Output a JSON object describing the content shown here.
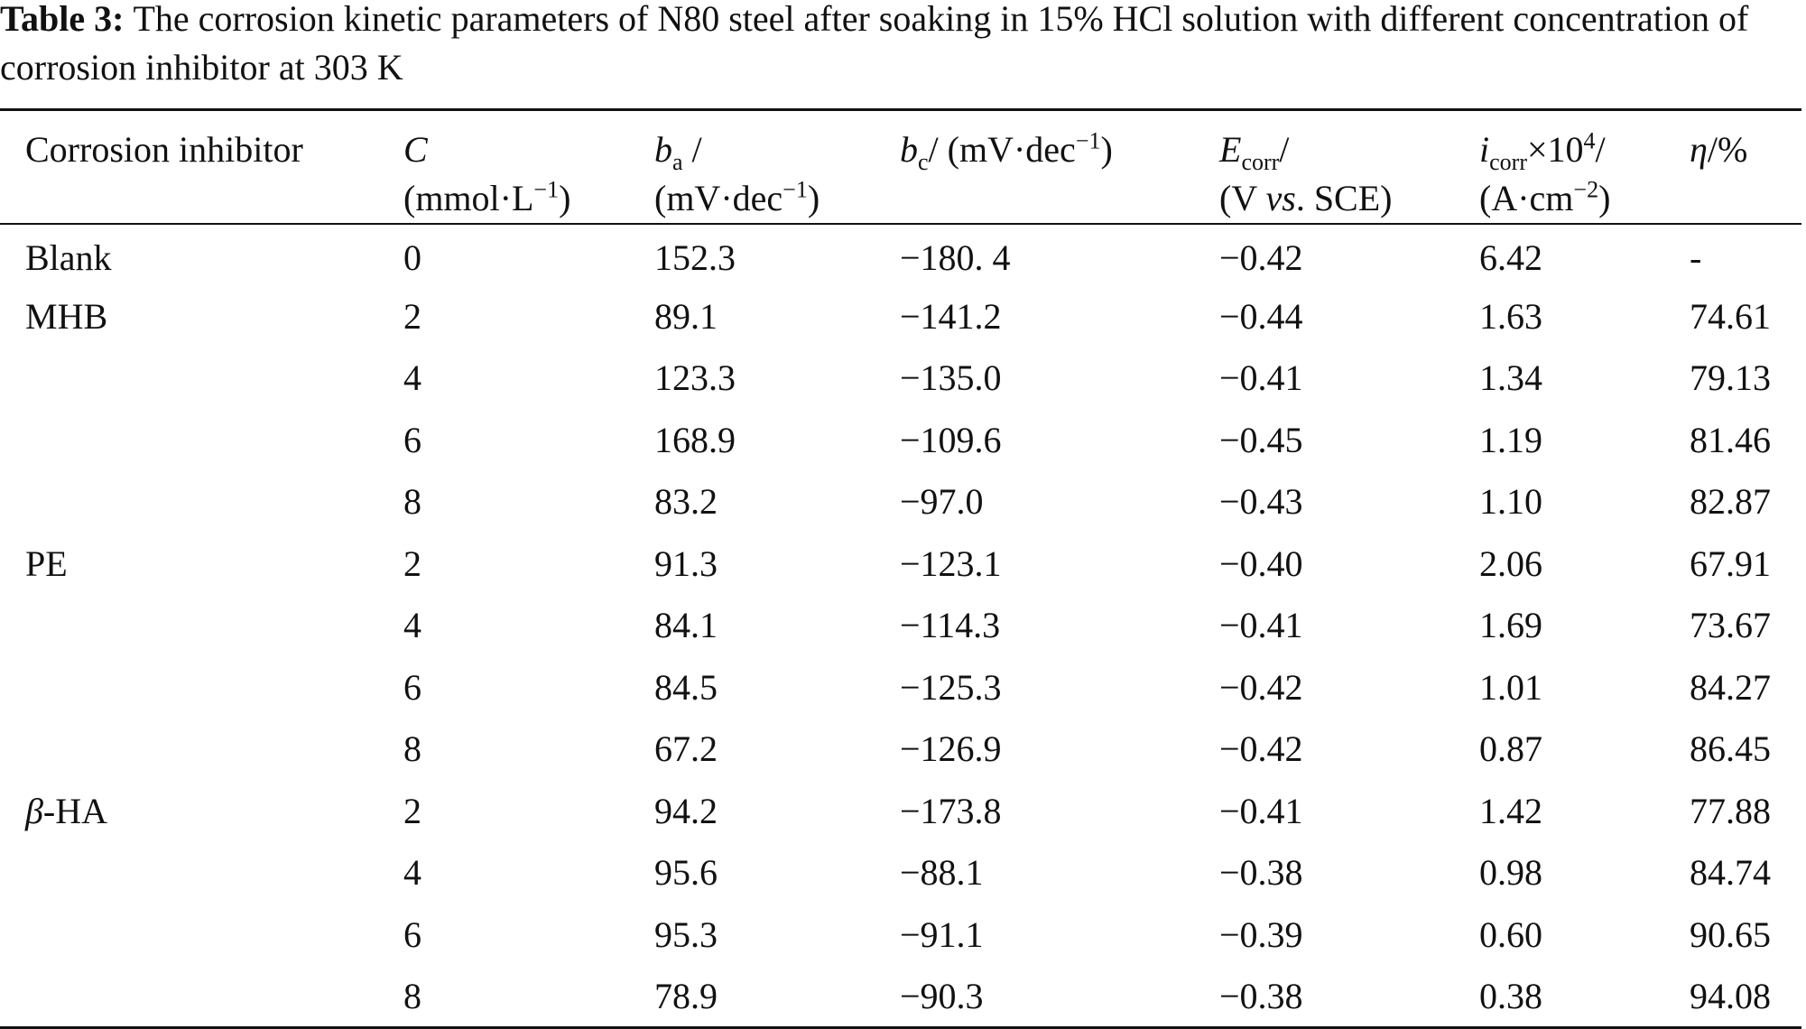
{
  "caption": {
    "label": "Table 3:",
    "text": "The corrosion kinetic parameters of N80 steel after soaking in 15% HCl solution with different concentration of corrosion inhibitor at 303 K"
  },
  "headers": {
    "inhibitor": "Corrosion inhibitor",
    "c_symbol": "C",
    "c_unit_pre": "(mmol·L",
    "c_unit_sup": "−1",
    "c_unit_post": ")",
    "ba_symbol": "b",
    "ba_sub": "a",
    "ba_slash": " /",
    "ba_unit_pre": "(mV·dec",
    "ba_unit_sup": "−1",
    "ba_unit_post": ")",
    "bc_symbol": "b",
    "bc_sub": "c",
    "bc_unit_pre": "/ (mV·dec",
    "bc_unit_sup": "−1",
    "bc_unit_post": ")",
    "ecorr_symbol": "E",
    "ecorr_sub": "corr",
    "ecorr_slash": "/",
    "ecorr_unit_pre": "(V ",
    "ecorr_unit_vs": "vs",
    "ecorr_unit_post": ". SCE)",
    "icorr_symbol": "i",
    "icorr_sub": "corr",
    "icorr_times": "×10",
    "icorr_sup": "4",
    "icorr_slash": "/",
    "icorr_unit_pre": "(A·cm",
    "icorr_unit_sup": "−2",
    "icorr_unit_post": ")",
    "eta_symbol": "η",
    "eta_unit": "/%"
  },
  "rows": [
    {
      "inhibitor": "Blank",
      "c": "0",
      "ba": "152.3",
      "bc": "−180. 4",
      "ecorr": "−0.42",
      "icorr": "6.42",
      "eta": "-"
    },
    {
      "inhibitor": "MHB",
      "c": "2",
      "ba": "89.1",
      "bc": "−141.2",
      "ecorr": "−0.44",
      "icorr": "1.63",
      "eta": "74.61"
    },
    {
      "inhibitor": "",
      "c": "4",
      "ba": "123.3",
      "bc": "−135.0",
      "ecorr": "−0.41",
      "icorr": "1.34",
      "eta": "79.13"
    },
    {
      "inhibitor": "",
      "c": "6",
      "ba": "168.9",
      "bc": "−109.6",
      "ecorr": "−0.45",
      "icorr": "1.19",
      "eta": "81.46"
    },
    {
      "inhibitor": "",
      "c": "8",
      "ba": "83.2",
      "bc": "−97.0",
      "ecorr": "−0.43",
      "icorr": "1.10",
      "eta": "82.87"
    },
    {
      "inhibitor": "PE",
      "c": "2",
      "ba": "91.3",
      "bc": "−123.1",
      "ecorr": "−0.40",
      "icorr": "2.06",
      "eta": "67.91"
    },
    {
      "inhibitor": "",
      "c": "4",
      "ba": "84.1",
      "bc": "−114.3",
      "ecorr": "−0.41",
      "icorr": "1.69",
      "eta": "73.67"
    },
    {
      "inhibitor": "",
      "c": "6",
      "ba": "84.5",
      "bc": "−125.3",
      "ecorr": "−0.42",
      "icorr": "1.01",
      "eta": "84.27"
    },
    {
      "inhibitor": "",
      "c": "8",
      "ba": "67.2",
      "bc": "−126.9",
      "ecorr": "−0.42",
      "icorr": "0.87",
      "eta": "86.45"
    },
    {
      "inhibitor": "β-HA",
      "c": "2",
      "ba": "94.2",
      "bc": "−173.8",
      "ecorr": "−0.41",
      "icorr": "1.42",
      "eta": "77.88"
    },
    {
      "inhibitor": "",
      "c": "4",
      "ba": "95.6",
      "bc": "−88.1",
      "ecorr": "−0.38",
      "icorr": "0.98",
      "eta": "84.74"
    },
    {
      "inhibitor": "",
      "c": "6",
      "ba": "95.3",
      "bc": "−91.1",
      "ecorr": "−0.39",
      "icorr": "0.60",
      "eta": "90.65"
    },
    {
      "inhibitor": "",
      "c": "8",
      "ba": "78.9",
      "bc": "−90.3",
      "ecorr": "−0.38",
      "icorr": "0.38",
      "eta": "94.08"
    }
  ]
}
